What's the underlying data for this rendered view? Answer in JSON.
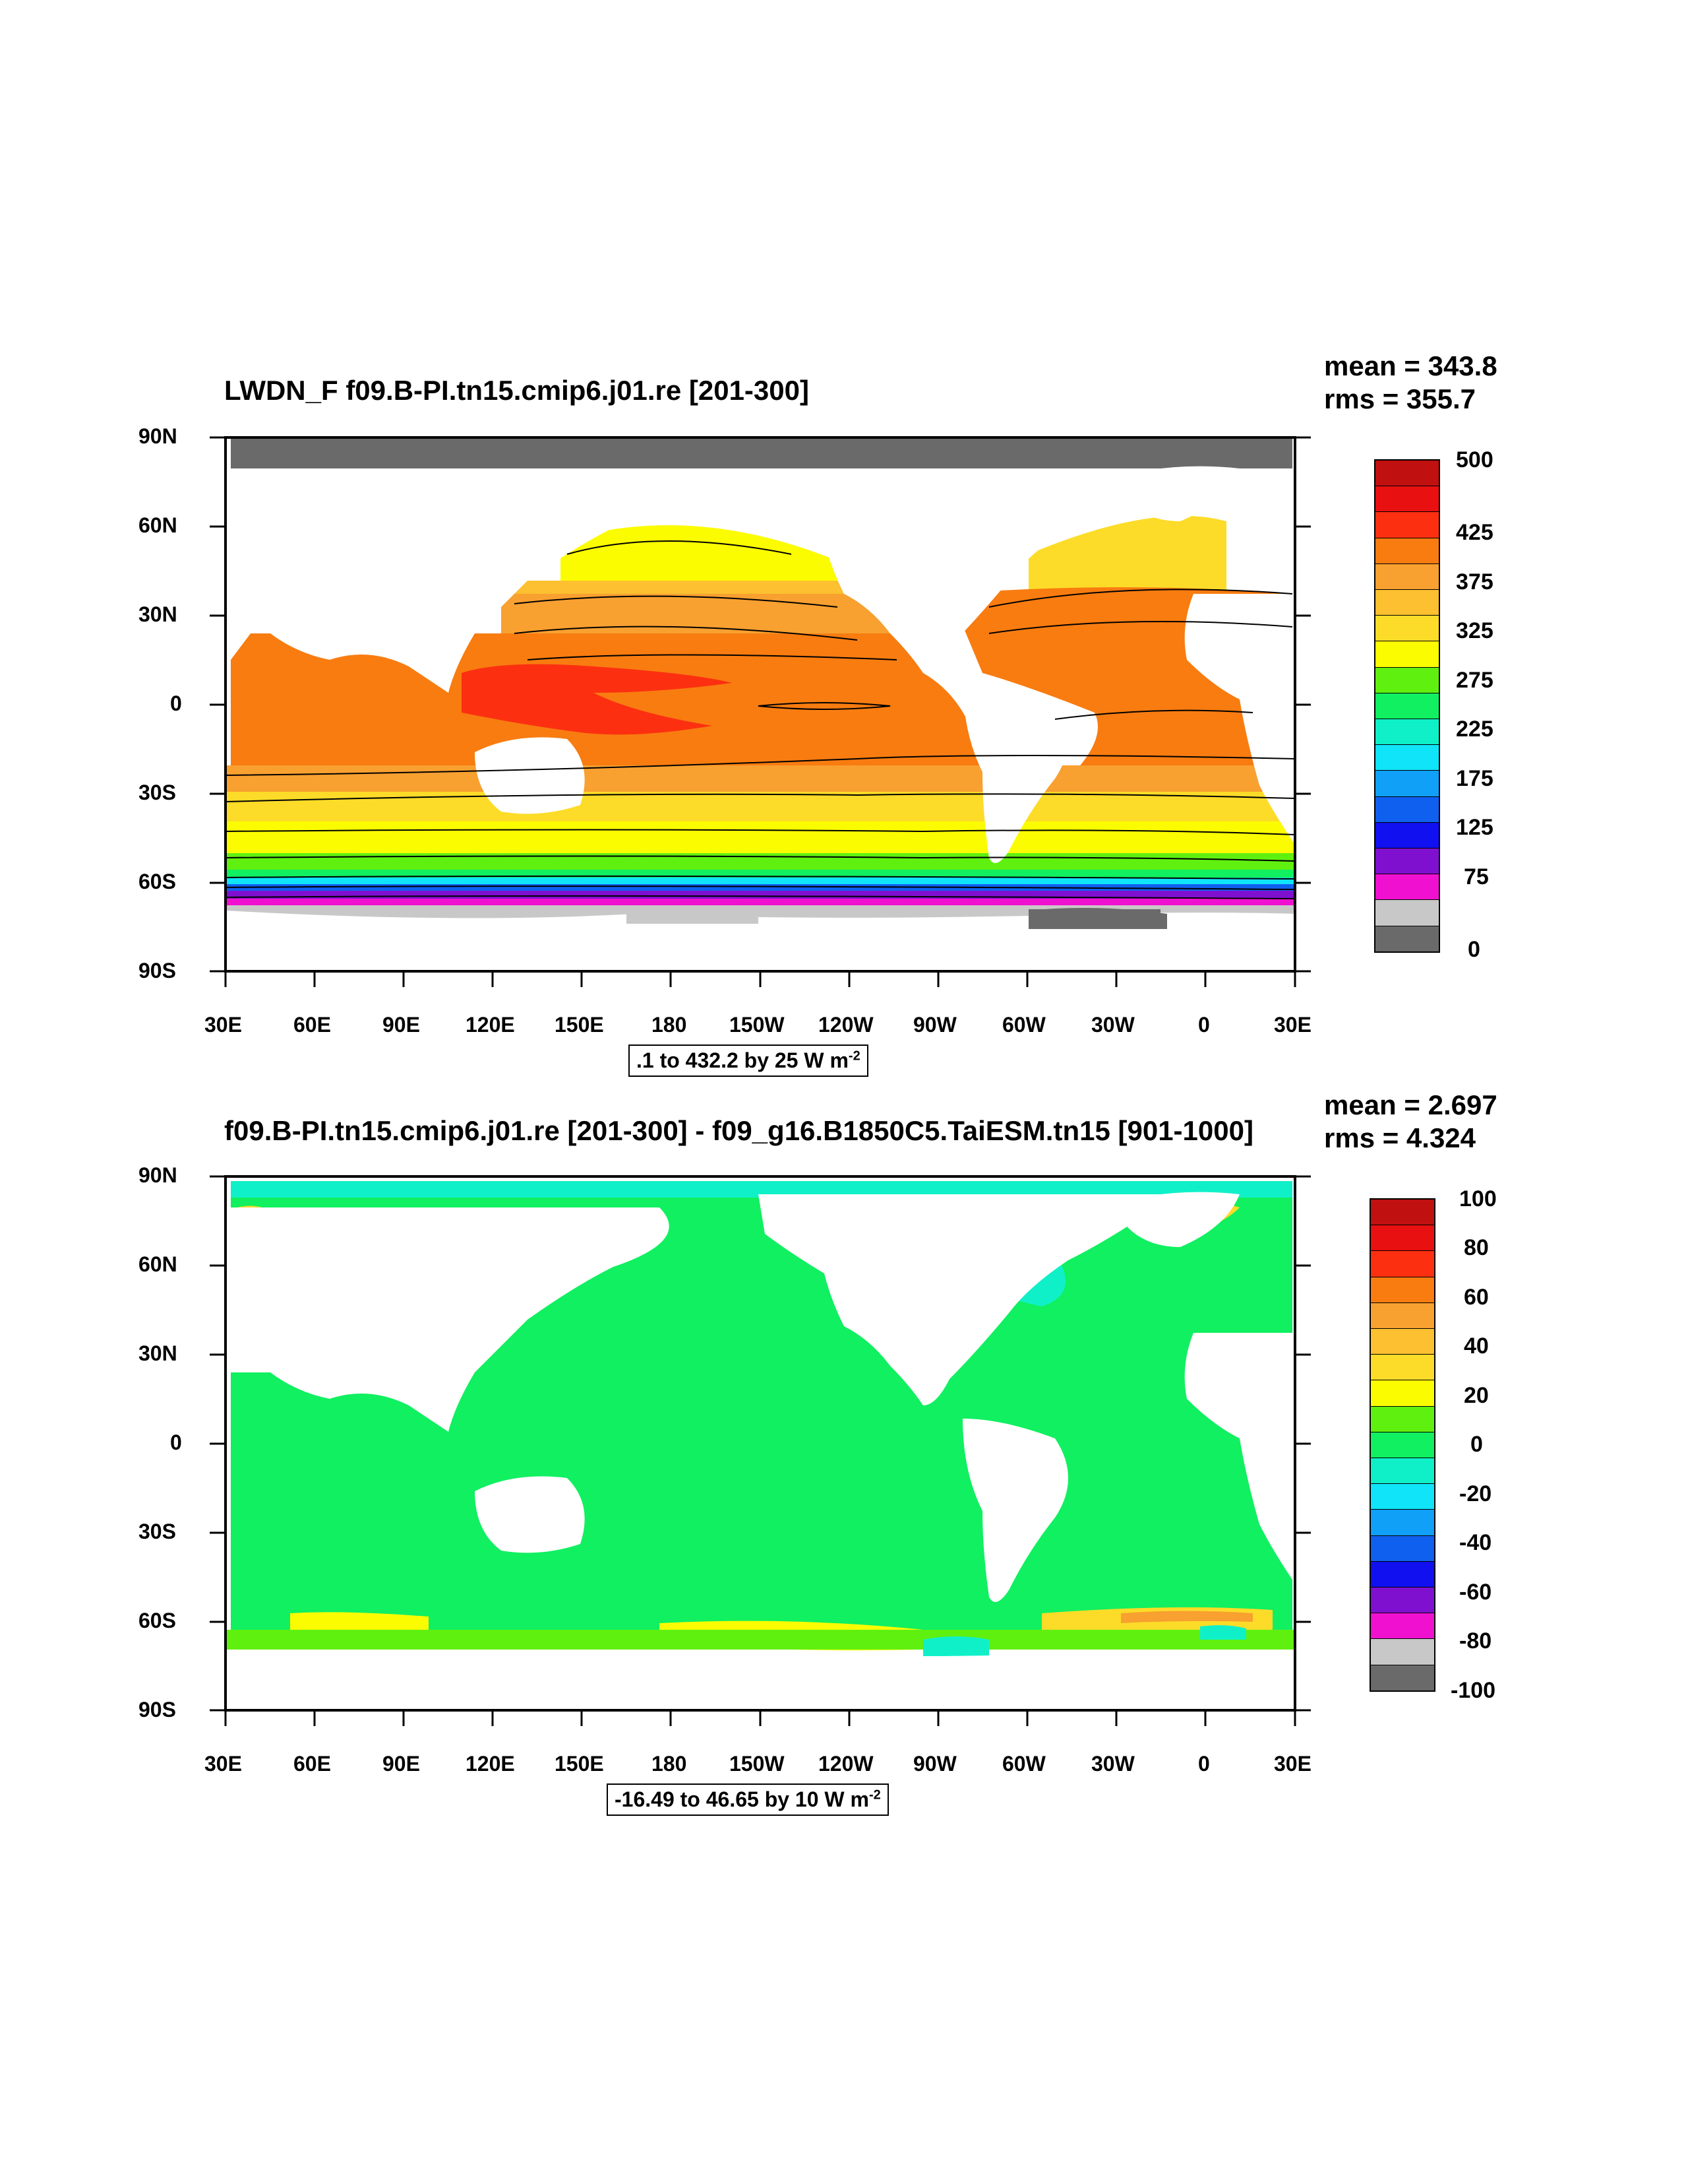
{
  "panels": [
    {
      "title": "LWDN_F f09.B-PI.tn15.cmip6.j01.re [201-300]",
      "mean": "mean = 343.8",
      "rms": "rms = 355.7",
      "contour_info": ".1 to 432.2 by 25  W m",
      "contour_info_exp": "-2",
      "colorbar_labels": [
        "500",
        "425",
        "375",
        "325",
        "275",
        "225",
        "175",
        "125",
        "75",
        "0"
      ],
      "colorbar_colors": [
        "#c01010",
        "#e81010",
        "#fc3010",
        "#f87c10",
        "#f8a030",
        "#fcc030",
        "#fcdc28",
        "#fcfc00",
        "#60f010",
        "#10f060",
        "#10f0c8",
        "#10e4f8",
        "#10a0f8",
        "#1060f0",
        "#1010f0",
        "#8010d0",
        "#f010d0",
        "#c8c8c8",
        "#6a6a6a"
      ]
    },
    {
      "title": "f09.B-PI.tn15.cmip6.j01.re [201-300] - f09_g16.B1850C5.TaiESM.tn15 [901-1000]",
      "mean": "mean = 2.697",
      "rms": "rms = 4.324",
      "contour_info": "-16.49 to 46.65 by 10  W m",
      "contour_info_exp": "-2",
      "colorbar_labels": [
        "100",
        "80",
        "60",
        "40",
        "20",
        "0",
        "-20",
        "-40",
        "-60",
        "-80",
        "-100"
      ],
      "colorbar_colors": [
        "#c01010",
        "#e81010",
        "#fc3010",
        "#f87c10",
        "#f8a030",
        "#fcc030",
        "#fcdc28",
        "#fcfc00",
        "#60f010",
        "#10f060",
        "#10f0c8",
        "#10e4f8",
        "#10a0f8",
        "#1060f0",
        "#1010f0",
        "#8010d0",
        "#f010d0",
        "#c8c8c8",
        "#6a6a6a"
      ]
    }
  ],
  "axes": {
    "lat_labels": [
      "90N",
      "60N",
      "30N",
      "0",
      "30S",
      "60S",
      "90S"
    ],
    "lon_labels": [
      "30E",
      "60E",
      "90E",
      "120E",
      "150E",
      "180",
      "150W",
      "120W",
      "90W",
      "60W",
      "30W",
      "0",
      "30E"
    ]
  }
}
